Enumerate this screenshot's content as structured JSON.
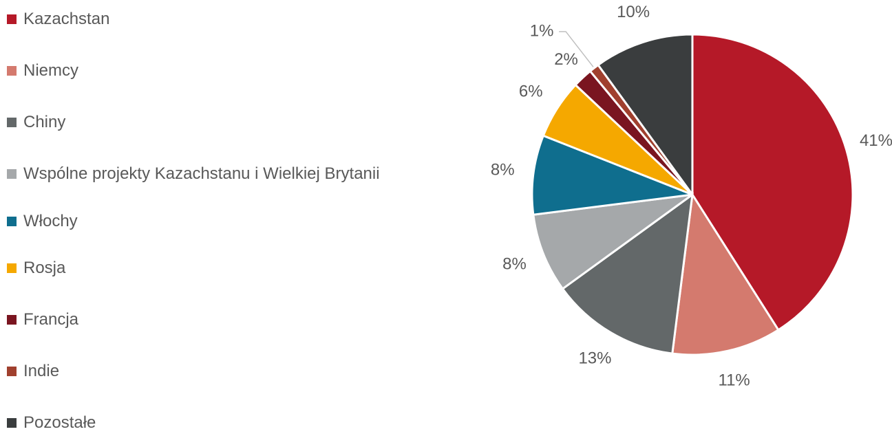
{
  "chart_data": {
    "type": "pie",
    "categories": [
      "Kazachstan",
      "Niemcy",
      "Chiny",
      "Wspólne projekty Kazachstanu i Wielkiej Brytanii",
      "Włochy",
      "Rosja",
      "Francja",
      "Indie",
      "Pozostałe"
    ],
    "values": [
      41,
      11,
      13,
      8,
      8,
      6,
      2,
      1,
      10
    ],
    "value_labels": [
      "41%",
      "11%",
      "13%",
      "8%",
      "8%",
      "6%",
      "2%",
      "1%",
      "10%"
    ],
    "colors": [
      "#b51928",
      "#d47a6e",
      "#636869",
      "#a5a8aa",
      "#0f6e8e",
      "#f5a800",
      "#7a1520",
      "#a0402e",
      "#3a3d3e"
    ],
    "legend": "left"
  }
}
